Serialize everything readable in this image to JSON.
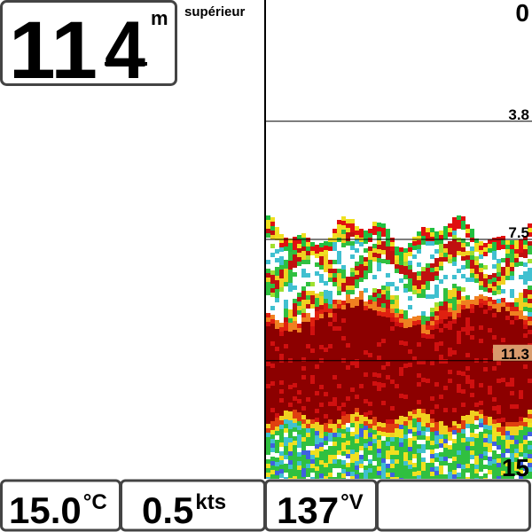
{
  "depth_box": {
    "digits_main": "11",
    "digit_decimal": "4",
    "unit": "m"
  },
  "view_label": "supérieur",
  "depth_scale": {
    "marks": [
      0,
      3.8,
      7.5,
      11.3,
      15
    ],
    "highlight": 11.3
  },
  "footer": [
    {
      "value": "15.0",
      "unit": "°C"
    },
    {
      "value": "0.5",
      "unit": "kts"
    },
    {
      "value": "137",
      "unit": "°V"
    }
  ]
}
